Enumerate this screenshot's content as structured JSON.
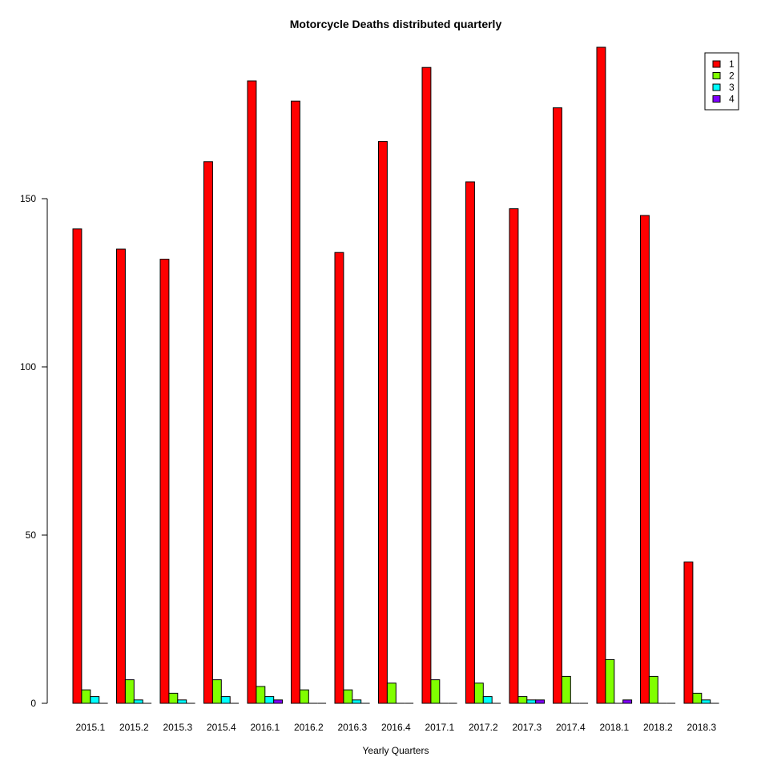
{
  "chart_data": {
    "type": "bar",
    "title": "Motorcycle Deaths distributed quarterly",
    "xlabel": "Yearly Quarters",
    "ylabel": "",
    "ylim": [
      0,
      195
    ],
    "yticks": [
      0,
      50,
      100,
      150
    ],
    "grid": false,
    "legend_position": "top-right",
    "categories": [
      "2015.1",
      "2015.2",
      "2015.3",
      "2015.4",
      "2016.1",
      "2016.2",
      "2016.3",
      "2016.4",
      "2017.1",
      "2017.2",
      "2017.3",
      "2017.4",
      "2018.1",
      "2018.2",
      "2018.3"
    ],
    "series": [
      {
        "name": "1",
        "color": "#ff0000",
        "values": [
          141,
          135,
          132,
          161,
          185,
          179,
          134,
          167,
          189,
          155,
          147,
          177,
          195,
          145,
          42
        ]
      },
      {
        "name": "2",
        "color": "#80ff00",
        "values": [
          4,
          7,
          3,
          7,
          5,
          4,
          4,
          6,
          7,
          6,
          2,
          8,
          13,
          8,
          3
        ]
      },
      {
        "name": "3",
        "color": "#00ffff",
        "values": [
          2,
          1,
          1,
          2,
          2,
          0,
          1,
          0,
          0,
          2,
          1,
          0,
          0,
          0,
          1
        ]
      },
      {
        "name": "4",
        "color": "#8000ff",
        "values": [
          0,
          0,
          0,
          0,
          1,
          0,
          0,
          0,
          0,
          0,
          1,
          0,
          1,
          0,
          0
        ]
      }
    ]
  }
}
